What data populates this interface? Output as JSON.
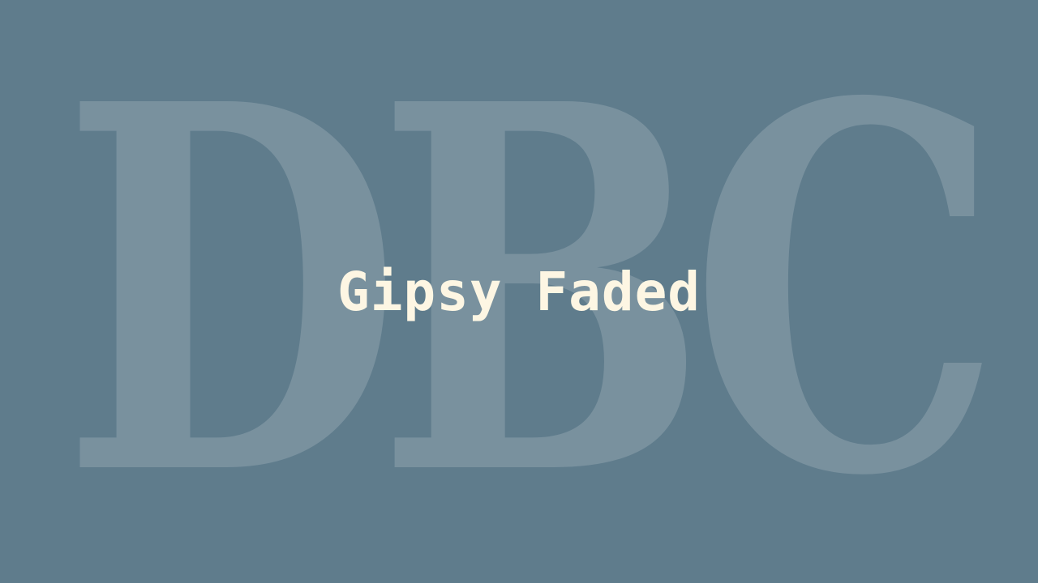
{
  "background": {
    "color": "#5f7c8c"
  },
  "watermark": {
    "text": "DBC",
    "color": "#ffffff"
  },
  "title": {
    "text": "Gipsy Faded",
    "color": "#fdf6e3"
  }
}
